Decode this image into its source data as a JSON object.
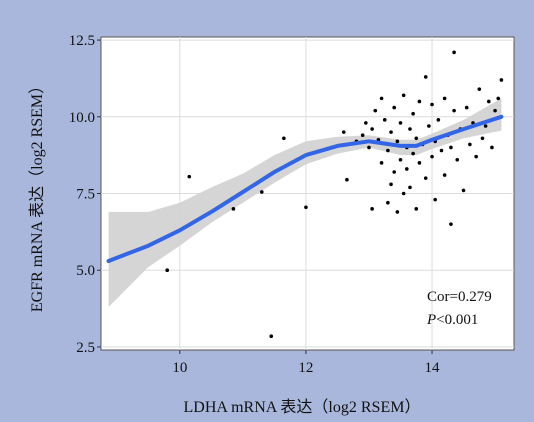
{
  "colors": {
    "figure_background": "#aab7dc",
    "plot_background": "#ffffff",
    "grid": "#dcdcdc",
    "fit_line": "#3366e6",
    "confidence_band": "#d3d3d3",
    "points": "#000000"
  },
  "chart_data": {
    "type": "scatter",
    "xlabel": "LDHA mRNA 表达（log2 RSEM）",
    "ylabel": "EGFR mRNA 表达（log2 RSEM）",
    "xlim": [
      8.75,
      15.3
    ],
    "ylim": [
      2.4,
      12.6
    ],
    "x_ticks": [
      10,
      12,
      14
    ],
    "y_ticks": [
      2.5,
      5.0,
      7.5,
      10.0,
      12.5
    ],
    "x_tick_labels": [
      "10",
      "12",
      "14"
    ],
    "y_tick_labels": [
      "2.5",
      "5.0",
      "7.5",
      "10.0",
      "12.5"
    ],
    "grid": true,
    "annotations": [
      "Cor=0.279",
      "<0.001"
    ],
    "annotation_prefix": "P",
    "points": [
      {
        "x": 8.87,
        "y": 5.3
      },
      {
        "x": 9.8,
        "y": 5.0
      },
      {
        "x": 10.15,
        "y": 8.05
      },
      {
        "x": 10.85,
        "y": 7.0
      },
      {
        "x": 11.3,
        "y": 7.55
      },
      {
        "x": 11.45,
        "y": 2.85
      },
      {
        "x": 11.65,
        "y": 9.3
      },
      {
        "x": 12.0,
        "y": 7.05
      },
      {
        "x": 12.6,
        "y": 9.5
      },
      {
        "x": 12.65,
        "y": 7.95
      },
      {
        "x": 12.8,
        "y": 9.2
      },
      {
        "x": 12.9,
        "y": 9.4
      },
      {
        "x": 12.95,
        "y": 9.8
      },
      {
        "x": 13.0,
        "y": 9.0
      },
      {
        "x": 13.05,
        "y": 9.6
      },
      {
        "x": 13.05,
        "y": 7.0
      },
      {
        "x": 13.1,
        "y": 10.2
      },
      {
        "x": 13.15,
        "y": 9.25
      },
      {
        "x": 13.2,
        "y": 8.5
      },
      {
        "x": 13.2,
        "y": 10.6
      },
      {
        "x": 13.25,
        "y": 9.9
      },
      {
        "x": 13.3,
        "y": 7.2
      },
      {
        "x": 13.3,
        "y": 8.9
      },
      {
        "x": 13.35,
        "y": 9.5
      },
      {
        "x": 13.35,
        "y": 7.8
      },
      {
        "x": 13.4,
        "y": 10.3
      },
      {
        "x": 13.4,
        "y": 8.2
      },
      {
        "x": 13.45,
        "y": 9.2
      },
      {
        "x": 13.45,
        "y": 6.9
      },
      {
        "x": 13.5,
        "y": 9.8
      },
      {
        "x": 13.5,
        "y": 8.6
      },
      {
        "x": 13.55,
        "y": 7.5
      },
      {
        "x": 13.55,
        "y": 10.7
      },
      {
        "x": 13.6,
        "y": 9.0
      },
      {
        "x": 13.6,
        "y": 8.3
      },
      {
        "x": 13.65,
        "y": 9.6
      },
      {
        "x": 13.65,
        "y": 7.7
      },
      {
        "x": 13.7,
        "y": 10.1
      },
      {
        "x": 13.7,
        "y": 8.8
      },
      {
        "x": 13.75,
        "y": 9.3
      },
      {
        "x": 13.75,
        "y": 7.0
      },
      {
        "x": 13.8,
        "y": 8.5
      },
      {
        "x": 13.8,
        "y": 10.5
      },
      {
        "x": 13.85,
        "y": 9.1
      },
      {
        "x": 13.9,
        "y": 11.3
      },
      {
        "x": 13.9,
        "y": 8.0
      },
      {
        "x": 13.95,
        "y": 9.7
      },
      {
        "x": 14.0,
        "y": 8.7
      },
      {
        "x": 14.0,
        "y": 10.4
      },
      {
        "x": 14.05,
        "y": 9.2
      },
      {
        "x": 14.05,
        "y": 7.3
      },
      {
        "x": 14.1,
        "y": 9.9
      },
      {
        "x": 14.15,
        "y": 8.9
      },
      {
        "x": 14.2,
        "y": 10.6
      },
      {
        "x": 14.2,
        "y": 8.1
      },
      {
        "x": 14.25,
        "y": 9.4
      },
      {
        "x": 14.3,
        "y": 6.5
      },
      {
        "x": 14.3,
        "y": 9.0
      },
      {
        "x": 14.35,
        "y": 12.1
      },
      {
        "x": 14.35,
        "y": 10.2
      },
      {
        "x": 14.4,
        "y": 8.6
      },
      {
        "x": 14.45,
        "y": 9.6
      },
      {
        "x": 14.5,
        "y": 7.6
      },
      {
        "x": 14.55,
        "y": 10.3
      },
      {
        "x": 14.6,
        "y": 9.1
      },
      {
        "x": 14.65,
        "y": 9.8
      },
      {
        "x": 14.7,
        "y": 8.7
      },
      {
        "x": 14.75,
        "y": 10.9
      },
      {
        "x": 14.8,
        "y": 9.3
      },
      {
        "x": 14.85,
        "y": 9.7
      },
      {
        "x": 14.9,
        "y": 10.5
      },
      {
        "x": 14.95,
        "y": 9.0
      },
      {
        "x": 15.0,
        "y": 10.2
      },
      {
        "x": 15.05,
        "y": 10.6
      },
      {
        "x": 15.1,
        "y": 11.2
      }
    ],
    "fit_line": {
      "x": [
        8.87,
        9.5,
        10.0,
        10.5,
        11.0,
        11.5,
        12.0,
        12.5,
        13.0,
        13.5,
        13.75,
        14.0,
        14.5,
        15.1
      ],
      "y": [
        5.3,
        5.8,
        6.3,
        6.9,
        7.55,
        8.2,
        8.75,
        9.05,
        9.2,
        9.05,
        9.05,
        9.25,
        9.6,
        10.0
      ],
      "lower": [
        3.8,
        5.1,
        5.8,
        6.55,
        7.2,
        7.85,
        8.45,
        8.8,
        9.0,
        8.75,
        8.75,
        8.95,
        9.3,
        9.55
      ],
      "upper": [
        6.9,
        6.9,
        7.2,
        7.7,
        8.15,
        8.75,
        9.2,
        9.35,
        9.4,
        9.25,
        9.25,
        9.45,
        9.9,
        10.6
      ]
    }
  }
}
